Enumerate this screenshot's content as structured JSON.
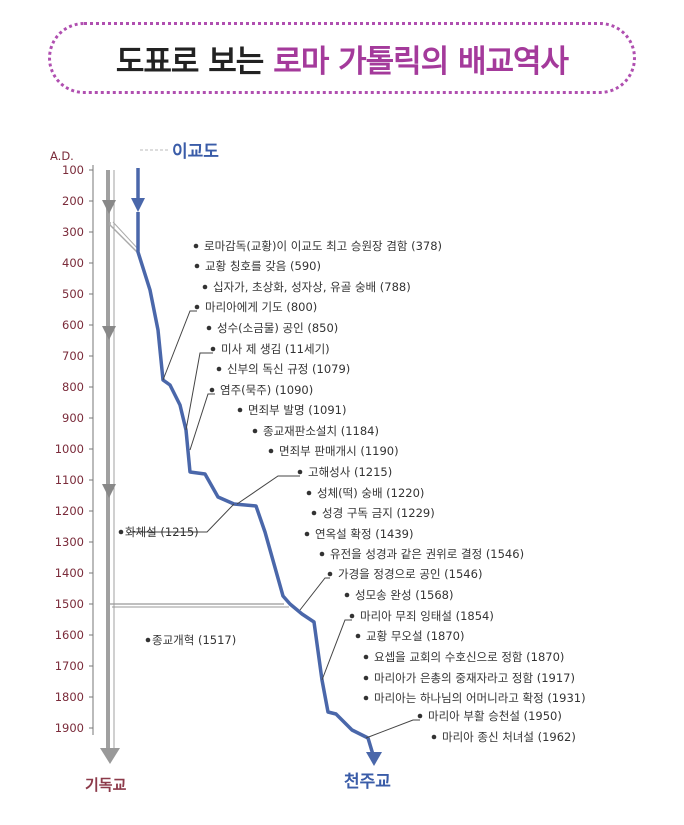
{
  "title": {
    "part1": "도표로 보는",
    "part2": "로마 가톨릭의 배교역사"
  },
  "labels": {
    "ad": "A.D.",
    "top_label": "이교도",
    "left_bottom": "기독교",
    "right_bottom": "천주교"
  },
  "years": [
    "100",
    "200",
    "300",
    "400",
    "500",
    "600",
    "700",
    "800",
    "900",
    "1000",
    "1100",
    "1200",
    "1300",
    "1400",
    "1500",
    "1600",
    "1700",
    "1800",
    "1900"
  ],
  "events_right": [
    "로마감독(교황)이 이교도 최고 승원장 겸함 (378)",
    "교황 칭호를 갖음 (590)",
    "십자가, 초상화, 성자상, 유골 숭배 (788)",
    "마리아에게 기도 (800)",
    "성수(소금물) 공인 (850)",
    "미사 제 생김 (11세기)",
    "신부의 독신 규정 (1079)",
    "염주(묵주) (1090)",
    "면죄부 발명 (1091)",
    "종교재판소설치 (1184)",
    "면죄부 판매개시 (1190)",
    "고해성사 (1215)",
    "성체(떡) 숭배 (1220)",
    "성경 구독 금지 (1229)",
    "연옥설 확정 (1439)",
    "유전을 성경과 같은 권위로 결정 (1546)",
    "가경을 정경으로 공인 (1546)",
    "성모송 완성 (1568)",
    "마리아 무죄 잉태설 (1854)",
    "교황 무오설 (1870)",
    "요셉을 교회의 수호신으로 정함 (1870)",
    "마리아가 은총의 중재자라고 정함 (1917)",
    "마리아는 하나님의 어머니라고 확정 (1931)",
    "마리아 부활 승천설 (1950)",
    "마리아 종신 처녀설 (1962)"
  ],
  "events_left": [
    "화체설 (1215)",
    "종교개혁 (1517)"
  ],
  "colors": {
    "blue": "#4a67aa",
    "gray": "#a0a0a0",
    "purple": "#a43a9b",
    "red": "#8c3a4a"
  }
}
